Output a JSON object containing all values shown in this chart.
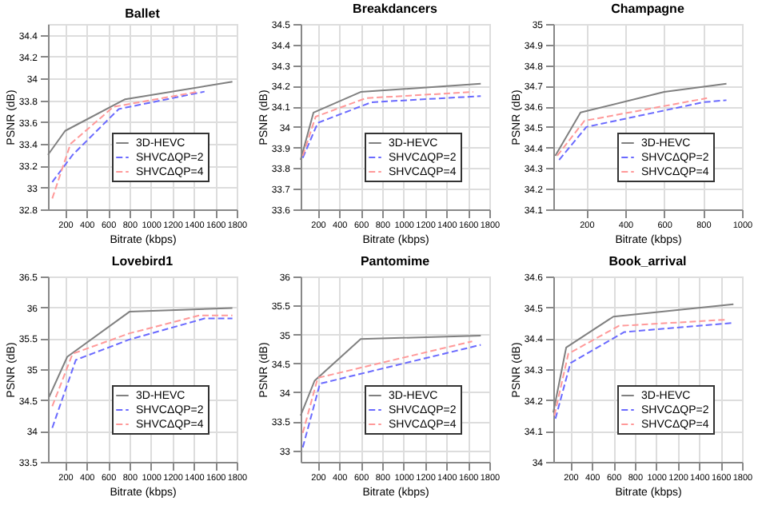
{
  "chart_data": [
    {
      "type": "line",
      "title": "Ballet",
      "xlabel": "Bitrate (kbps)",
      "ylabel": "PSNR (dB)",
      "xlim": [
        40,
        1800
      ],
      "xticks": [
        200,
        400,
        600,
        800,
        1000,
        1200,
        1400,
        1600,
        1800
      ],
      "ylim": [
        32.8,
        34.5
      ],
      "yticks": [
        32.8,
        33,
        33.2,
        33.4,
        33.6,
        33.8,
        34,
        34.2,
        34.4
      ],
      "grid": true,
      "legend": "bottom right",
      "marker": "none",
      "series": [
        {
          "name": "3D-HEVC",
          "color": "#808080",
          "line_style": "solid",
          "x": [
            40,
            200,
            760,
            1760
          ],
          "values": [
            33.3,
            33.52,
            33.81,
            33.97
          ]
        },
        {
          "name": "SHVCΔQP=2",
          "color": "#6a6aff",
          "line_style": "dashed",
          "x": [
            80,
            270,
            700,
            1500
          ],
          "values": [
            33.05,
            33.3,
            33.72,
            33.88
          ]
        },
        {
          "name": "SHVCΔQP=4",
          "color": "#ff9999",
          "line_style": "dashed",
          "x": [
            80,
            250,
            650,
            1450
          ],
          "values": [
            32.9,
            33.4,
            33.74,
            33.88
          ]
        }
      ]
    },
    {
      "type": "line",
      "title": "Breakdancers",
      "xlabel": "Bitrate (kbps)",
      "ylabel": "PSNR (dB)",
      "xlim": [
        40,
        1800
      ],
      "xticks": [
        200,
        400,
        600,
        800,
        1000,
        1200,
        1400,
        1600,
        1800
      ],
      "ylim": [
        33.6,
        34.5
      ],
      "yticks": [
        33.6,
        33.7,
        33.8,
        33.9,
        34,
        34.1,
        34.2,
        34.3,
        34.4,
        34.5
      ],
      "grid": true,
      "legend": "bottom right",
      "marker": "none",
      "series": [
        {
          "name": "3D-HEVC",
          "color": "#808080",
          "line_style": "solid",
          "x": [
            40,
            160,
            600,
            1720
          ],
          "values": [
            33.84,
            34.07,
            34.17,
            34.21
          ]
        },
        {
          "name": "SHVCΔQP=2",
          "color": "#6a6aff",
          "line_style": "dashed",
          "x": [
            60,
            200,
            700,
            1720
          ],
          "values": [
            33.85,
            34.02,
            34.12,
            34.15
          ]
        },
        {
          "name": "SHVCΔQP=4",
          "color": "#ff9999",
          "line_style": "dashed",
          "x": [
            60,
            180,
            650,
            1650
          ],
          "values": [
            33.86,
            34.05,
            34.14,
            34.17
          ]
        }
      ]
    },
    {
      "type": "line",
      "title": "Champagne",
      "xlabel": "Bitrate (kbps)",
      "ylabel": "PSNR (dB)",
      "xlim": [
        30,
        1000
      ],
      "xticks": [
        200,
        400,
        600,
        800,
        1000
      ],
      "ylim": [
        34.1,
        35
      ],
      "yticks": [
        34.1,
        34.2,
        34.3,
        34.4,
        34.5,
        34.6,
        34.7,
        34.8,
        34.9,
        35
      ],
      "grid": true,
      "legend": "bottom right",
      "marker": "none",
      "series": [
        {
          "name": "3D-HEVC",
          "color": "#808080",
          "line_style": "solid",
          "x": [
            40,
            170,
            600,
            920
          ],
          "values": [
            34.36,
            34.57,
            34.67,
            34.71
          ]
        },
        {
          "name": "SHVCΔQP=2",
          "color": "#6a6aff",
          "line_style": "dashed",
          "x": [
            60,
            200,
            800,
            920
          ],
          "values": [
            34.34,
            34.5,
            34.62,
            34.63
          ]
        },
        {
          "name": "SHVCΔQP=4",
          "color": "#ff9999",
          "line_style": "dashed",
          "x": [
            50,
            190,
            820
          ],
          "values": [
            34.36,
            34.53,
            34.64
          ]
        }
      ]
    },
    {
      "type": "line",
      "title": "Lovebird1",
      "xlabel": "Bitrate (kbps)",
      "ylabel": "PSNR (dB)",
      "xlim": [
        40,
        1800
      ],
      "xticks": [
        200,
        400,
        600,
        800,
        1000,
        1200,
        1400,
        1600,
        1800
      ],
      "ylim": [
        33.5,
        36.5
      ],
      "yticks": [
        33.5,
        34,
        34.5,
        35,
        35.5,
        36,
        36.5
      ],
      "grid": true,
      "legend": "bottom right",
      "marker": "none",
      "series": [
        {
          "name": "3D-HEVC",
          "color": "#808080",
          "line_style": "solid",
          "x": [
            50,
            220,
            800,
            1760
          ],
          "values": [
            34.55,
            35.2,
            35.93,
            35.99
          ]
        },
        {
          "name": "SHVCΔQP=2",
          "color": "#6a6aff",
          "line_style": "dashed",
          "x": [
            80,
            300,
            800,
            1500,
            1760
          ],
          "values": [
            34.05,
            35.15,
            35.48,
            35.82,
            35.82
          ]
        },
        {
          "name": "SHVCΔQP=4",
          "color": "#ff9999",
          "line_style": "dashed",
          "x": [
            80,
            270,
            800,
            1450,
            1760
          ],
          "values": [
            34.4,
            35.25,
            35.58,
            35.87,
            35.87
          ]
        }
      ]
    },
    {
      "type": "line",
      "title": "Pantomime",
      "xlabel": "Bitrate (kbps)",
      "ylabel": "PSNR (dB)",
      "xlim": [
        40,
        1800
      ],
      "xticks": [
        200,
        400,
        600,
        800,
        1000,
        1200,
        1400,
        1600,
        1800
      ],
      "ylim": [
        32.8,
        36
      ],
      "yticks": [
        33,
        33.5,
        34,
        34.5,
        35,
        35.5,
        36
      ],
      "grid": true,
      "legend": "bottom right",
      "marker": "none",
      "series": [
        {
          "name": "3D-HEVC",
          "color": "#808080",
          "line_style": "solid",
          "x": [
            40,
            170,
            600,
            1720
          ],
          "values": [
            33.6,
            34.2,
            34.92,
            34.98
          ]
        },
        {
          "name": "SHVCΔQP=2",
          "color": "#6a6aff",
          "line_style": "dashed",
          "x": [
            60,
            220,
            1720
          ],
          "values": [
            33.05,
            34.15,
            34.82
          ]
        },
        {
          "name": "SHVCΔQP=4",
          "color": "#ff9999",
          "line_style": "dashed",
          "x": [
            60,
            200,
            1640
          ],
          "values": [
            33.3,
            34.25,
            34.88
          ]
        }
      ]
    },
    {
      "type": "line",
      "title": "Book_arrival",
      "xlabel": "Bitrate (kbps)",
      "ylabel": "PSNR (dB)",
      "xlim": [
        40,
        1800
      ],
      "xticks": [
        200,
        400,
        600,
        800,
        1000,
        1200,
        1400,
        1600,
        1800
      ],
      "ylim": [
        34,
        34.6
      ],
      "yticks": [
        34,
        34.1,
        34.2,
        34.3,
        34.4,
        34.5,
        34.6
      ],
      "grid": true,
      "legend": "bottom right",
      "marker": "none",
      "series": [
        {
          "name": "3D-HEVC",
          "color": "#808080",
          "line_style": "solid",
          "x": [
            40,
            160,
            600,
            1720
          ],
          "values": [
            34.16,
            34.37,
            34.47,
            34.51
          ]
        },
        {
          "name": "SHVCΔQP=2",
          "color": "#6a6aff",
          "line_style": "dashed",
          "x": [
            60,
            200,
            700,
            1720
          ],
          "values": [
            34.14,
            34.32,
            34.42,
            34.45
          ]
        },
        {
          "name": "SHVCΔQP=4",
          "color": "#ff9999",
          "line_style": "dashed",
          "x": [
            50,
            180,
            650,
            1640
          ],
          "values": [
            34.15,
            34.35,
            34.44,
            34.46
          ]
        }
      ]
    }
  ]
}
